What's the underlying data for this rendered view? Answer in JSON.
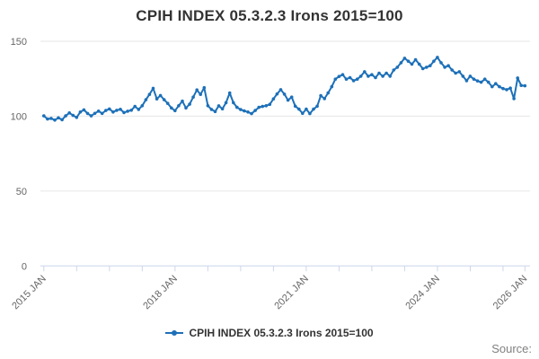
{
  "title": "CPIH INDEX 05.3.2.3 Irons 2015=100",
  "legend": {
    "label": "CPIH INDEX 05.3.2.3 Irons 2015=100"
  },
  "source_label": "Source:",
  "colors": {
    "series": "#1d70b8",
    "grid": "#e6e6e6",
    "axis": "#ccd6eb",
    "tick_label": "#666666",
    "title": "#333333",
    "legend_text": "#333333",
    "source_text": "#808080"
  },
  "chart_data": {
    "type": "line",
    "title": "CPIH INDEX 05.3.2.3 Irons 2015=100",
    "grid": true,
    "legend_position": "bottom-center",
    "y_axis": {
      "ticks": [
        0,
        50,
        100,
        150
      ],
      "range": [
        0,
        150
      ]
    },
    "x_axis": {
      "range_years": [
        2015.0,
        2026.0
      ],
      "minor_tick_interval_months": 9,
      "labels": [
        {
          "text": "2015 JAN",
          "year": 2015
        },
        {
          "text": "2018 JAN",
          "year": 2018
        },
        {
          "text": "2021 JAN",
          "year": 2021
        },
        {
          "text": "2024 JAN",
          "year": 2024
        },
        {
          "text": "2026 JAN",
          "year": 2026
        }
      ]
    },
    "series": [
      {
        "name": "CPIH INDEX 05.3.2.3 Irons 2015=100",
        "start": "2015 JAN",
        "frequency": "monthly",
        "values": [
          100.2,
          98.1,
          98.5,
          97.4,
          98.9,
          97.6,
          100.2,
          102.2,
          100.5,
          99.2,
          102.8,
          104.2,
          101.8,
          100.2,
          101.9,
          103.4,
          101.8,
          103.8,
          104.8,
          102.8,
          103.9,
          104.6,
          102.4,
          103.3,
          104.0,
          106.5,
          104.5,
          107.0,
          111.0,
          114.5,
          118.6,
          111.5,
          113.8,
          111.0,
          108.5,
          105.5,
          103.7,
          107.0,
          110.0,
          105.5,
          108.0,
          112.7,
          117.5,
          114.5,
          119.0,
          107.0,
          104.5,
          103.1,
          106.9,
          104.9,
          109.0,
          115.5,
          109.0,
          105.9,
          104.4,
          103.5,
          102.8,
          101.7,
          103.8,
          105.9,
          106.5,
          107.0,
          107.9,
          111.5,
          114.8,
          117.7,
          114.7,
          110.7,
          112.7,
          106.7,
          104.7,
          101.9,
          104.7,
          101.7,
          104.7,
          106.7,
          113.7,
          111.7,
          115.5,
          119.7,
          124.7,
          126.5,
          127.7,
          124.7,
          125.7,
          123.7,
          124.7,
          126.7,
          129.7,
          126.7,
          127.7,
          125.7,
          128.7,
          126.7,
          128.7,
          126.7,
          130.8,
          132.7,
          135.7,
          138.7,
          136.7,
          134.7,
          137.7,
          134.7,
          131.7,
          132.7,
          133.7,
          136.7,
          139.3,
          135.7,
          132.7,
          133.7,
          130.8,
          128.7,
          129.7,
          126.7,
          123.7,
          126.7,
          124.7,
          123.5,
          122.7,
          124.7,
          122.7,
          119.7,
          121.7,
          119.7,
          118.4,
          117.7,
          118.7,
          111.7,
          125.5,
          120.5,
          120.3
        ]
      }
    ]
  }
}
